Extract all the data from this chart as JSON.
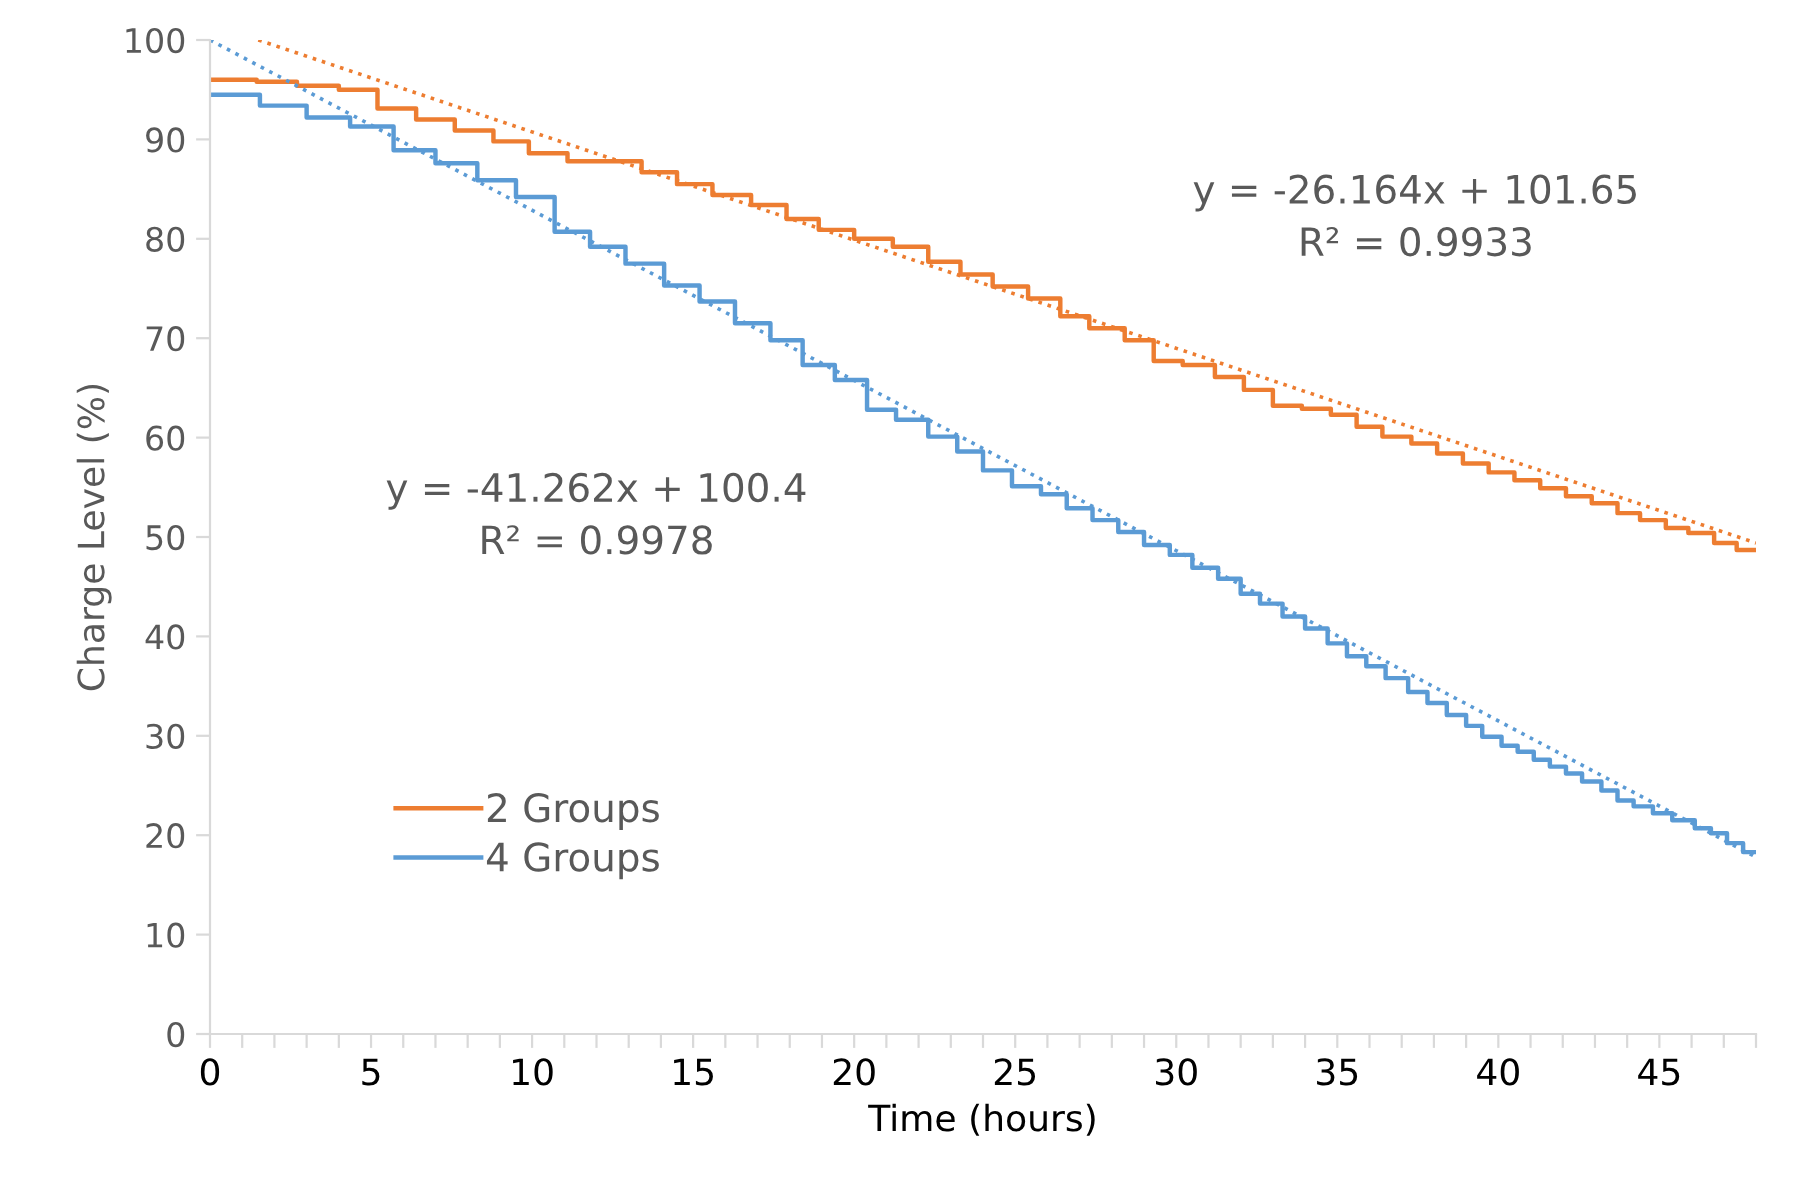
{
  "chart_data": {
    "type": "step",
    "xlabel": "Time (hours)",
    "ylabel": "Charge Level (%)",
    "xlim": [
      0,
      48
    ],
    "ylim": [
      0,
      100
    ],
    "xticks": [
      0,
      {
        "value": 1,
        "label": null
      },
      {
        "value": 2,
        "label": null
      },
      {
        "value": 3,
        "label": null
      },
      {
        "value": 4,
        "label": null
      },
      5,
      {
        "value": 6,
        "label": null
      },
      {
        "value": 7,
        "label": null
      },
      {
        "value": 8,
        "label": null
      },
      {
        "value": 9,
        "label": null
      },
      10,
      {
        "value": 11,
        "label": null
      },
      {
        "value": 12,
        "label": null
      },
      {
        "value": 13,
        "label": null
      },
      {
        "value": 14,
        "label": null
      },
      15,
      {
        "value": 16,
        "label": null
      },
      {
        "value": 17,
        "label": null
      },
      {
        "value": 18,
        "label": null
      },
      {
        "value": 19,
        "label": null
      },
      20,
      {
        "value": 21,
        "label": null
      },
      {
        "value": 22,
        "label": null
      },
      {
        "value": 23,
        "label": null
      },
      {
        "value": 24,
        "label": null
      },
      25,
      {
        "value": 26,
        "label": null
      },
      {
        "value": 27,
        "label": null
      },
      {
        "value": 28,
        "label": null
      },
      {
        "value": 29,
        "label": null
      },
      30,
      {
        "value": 31,
        "label": null
      },
      {
        "value": 32,
        "label": null
      },
      {
        "value": 33,
        "label": null
      },
      {
        "value": 34,
        "label": null
      },
      35,
      {
        "value": 36,
        "label": null
      },
      {
        "value": 37,
        "label": null
      },
      {
        "value": 38,
        "label": null
      },
      {
        "value": 39,
        "label": null
      },
      40,
      {
        "value": 41,
        "label": null
      },
      {
        "value": 42,
        "label": null
      },
      {
        "value": 43,
        "label": null
      },
      {
        "value": 44,
        "label": null
      },
      45,
      {
        "value": 46,
        "label": null
      },
      {
        "value": 47,
        "label": null
      },
      {
        "value": 48,
        "label": null
      }
    ],
    "yticks": [
      0,
      10,
      20,
      30,
      40,
      50,
      60,
      70,
      80,
      90,
      100
    ],
    "grid": false,
    "legend": "bottom left",
    "marker": "none",
    "annotations": [
      "y = -26.164x + 101.65\nR² = 0.9933",
      "y = -41.262x + 100.4\nR² = 0.9978"
    ],
    "series": [
      {
        "name": "2 Groups",
        "color": "#ed7d31",
        "x": [
          0,
          1.45,
          2.7,
          4.0,
          5.2,
          6.4,
          7.6,
          8.8,
          9.9,
          11.1,
          13.4,
          14.5,
          15.6,
          16.8,
          17.9,
          18.9,
          20.0,
          21.2,
          22.3,
          23.3,
          24.3,
          25.4,
          26.4,
          27.3,
          28.4,
          29.3,
          30.2,
          31.2,
          32.1,
          33.0,
          33.9,
          34.8,
          35.6,
          36.4,
          37.3,
          38.1,
          38.9,
          39.7,
          40.5,
          41.3,
          42.1,
          42.9,
          43.7,
          44.4,
          45.2,
          45.9,
          46.7,
          47.4,
          48.0
        ],
        "values": [
          96.0,
          95.8,
          95.4,
          95.0,
          93.1,
          92.0,
          90.9,
          89.8,
          88.6,
          87.8,
          86.7,
          85.5,
          84.4,
          83.4,
          82.0,
          80.9,
          80.0,
          79.2,
          77.7,
          76.4,
          75.2,
          74.0,
          72.2,
          71.0,
          69.8,
          67.7,
          67.3,
          66.1,
          64.8,
          63.2,
          62.9,
          62.3,
          61.1,
          60.1,
          59.4,
          58.4,
          57.4,
          56.5,
          55.7,
          54.9,
          54.1,
          53.4,
          52.4,
          51.7,
          50.9,
          50.4,
          49.4,
          48.7,
          48.7
        ]
      },
      {
        "name": "4 Groups",
        "color": "#5b9bd5",
        "x": [
          0,
          1.55,
          3.0,
          4.35,
          5.7,
          7.0,
          8.3,
          9.5,
          10.7,
          11.8,
          12.9,
          14.1,
          15.2,
          16.3,
          17.4,
          18.4,
          19.4,
          20.4,
          21.3,
          22.3,
          23.2,
          24.0,
          24.9,
          25.8,
          26.6,
          27.4,
          28.2,
          29.0,
          29.8,
          30.5,
          31.3,
          32.0,
          32.6,
          33.3,
          34.0,
          34.7,
          35.3,
          35.9,
          36.5,
          37.2,
          37.8,
          38.4,
          39.0,
          39.5,
          40.1,
          40.6,
          41.1,
          41.6,
          42.1,
          42.6,
          43.2,
          43.7,
          44.2,
          44.8,
          45.4,
          46.1,
          46.6,
          47.1,
          47.6,
          48.0
        ],
        "values": [
          94.5,
          93.4,
          92.2,
          91.3,
          88.9,
          87.6,
          85.9,
          84.2,
          80.7,
          79.2,
          77.5,
          75.3,
          73.7,
          71.5,
          69.8,
          67.3,
          65.8,
          62.8,
          61.8,
          60.1,
          58.6,
          56.7,
          55.1,
          54.3,
          52.9,
          51.7,
          50.5,
          49.2,
          48.2,
          46.9,
          45.8,
          44.3,
          43.3,
          42.0,
          40.8,
          39.3,
          38.0,
          37.0,
          35.8,
          34.4,
          33.3,
          32.1,
          31.0,
          29.9,
          29.0,
          28.4,
          27.6,
          26.9,
          26.2,
          25.4,
          24.5,
          23.5,
          22.9,
          22.2,
          21.5,
          20.7,
          20.2,
          19.2,
          18.3,
          18.3
        ]
      },
      {
        "type": "line",
        "line_style": "dotted",
        "color": "#ed7d31",
        "x": [
          1.5,
          48
        ],
        "values": [
          100,
          49.4
        ]
      },
      {
        "type": "line",
        "line_style": "dotted",
        "color": "#5b9bd5",
        "x": [
          0,
          48
        ],
        "values": [
          100,
          17.8
        ]
      }
    ]
  }
}
